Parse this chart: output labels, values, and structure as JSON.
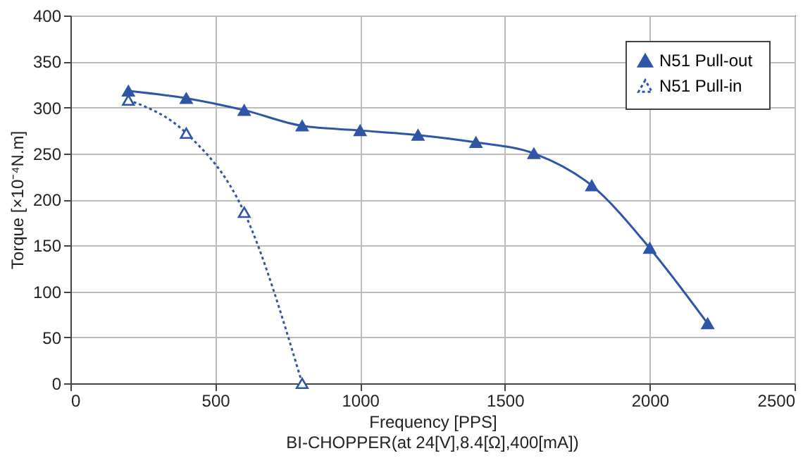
{
  "chart_data": {
    "type": "line",
    "xlabel": "Frequency [PPS]",
    "ylabel": "Torque [×10⁻⁴N.m]",
    "annotations": [
      "BI-CHOPPER(at 24[V],8.4[Ω],400[mA])"
    ],
    "xlim": [
      0,
      2500
    ],
    "xticks": [
      0,
      500,
      1000,
      1500,
      2000,
      2500
    ],
    "ylim": [
      0,
      400
    ],
    "yticks": [
      0,
      50,
      100,
      150,
      200,
      250,
      300,
      350,
      400
    ],
    "grid": true,
    "legend": "top right",
    "marker": "triangle",
    "series": [
      {
        "name": "N51  Pull-out",
        "color": "#2f56a6",
        "line_style": "solid",
        "x": [
          200,
          400,
          600,
          800,
          1000,
          1200,
          1400,
          1600,
          1800,
          2000,
          2200
        ],
        "values": [
          318,
          310,
          297,
          280,
          275,
          270,
          262,
          250,
          215,
          147,
          65
        ]
      },
      {
        "name": "N51  Pull-in",
        "color": "#2f56a6",
        "line_style": "dotted",
        "x": [
          200,
          400,
          600,
          800
        ],
        "values": [
          308,
          272,
          186,
          0
        ]
      }
    ]
  }
}
